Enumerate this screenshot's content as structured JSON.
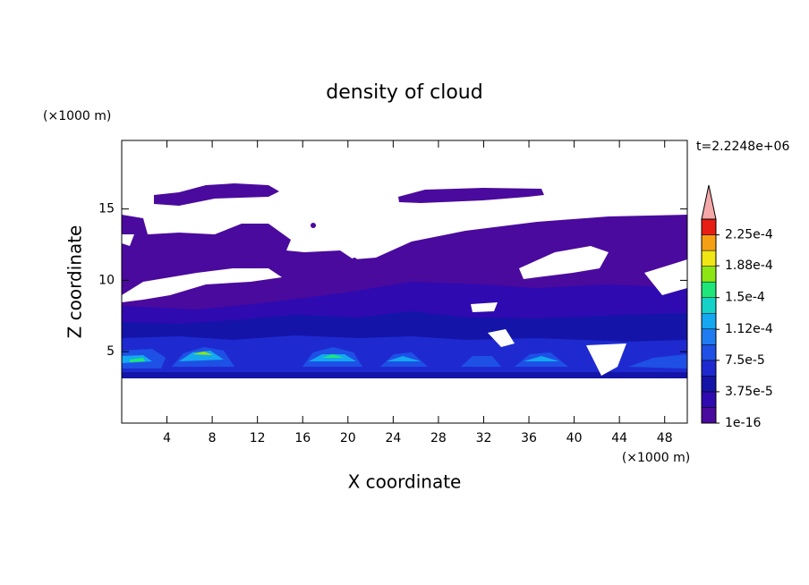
{
  "chart_data": {
    "type": "contour",
    "title": "density of cloud",
    "x_label": "X coordinate",
    "y_label": "Z coordinate",
    "x_unit": "(×1000 m)",
    "y_unit": "(×1000 m)",
    "time_label": "t=2.2248e+06",
    "xlim": [
      0,
      50
    ],
    "ylim": [
      0,
      19.8
    ],
    "xticks": [
      4,
      8,
      12,
      16,
      20,
      24,
      28,
      32,
      36,
      40,
      44,
      48
    ],
    "yticks": [
      5,
      10,
      15
    ],
    "colorbar": {
      "clim": [
        1e-16,
        0.00024375
      ],
      "colors": [
        "#4a0a9e",
        "#2e0ab0",
        "#1414a8",
        "#1e2ad0",
        "#1e50e6",
        "#1e7cf0",
        "#14a8f0",
        "#14d2c8",
        "#1ee678",
        "#8ce614",
        "#f0e614",
        "#f5a014",
        "#e61e14"
      ],
      "extend_color": "#f4a8a8",
      "ticks": [
        {
          "value": 1e-16,
          "label": "1e-16"
        },
        {
          "value": 3.75e-05,
          "label": "3.75e-5"
        },
        {
          "value": 7.5e-05,
          "label": "7.5e-5"
        },
        {
          "value": 0.000112,
          "label": "1.12e-4"
        },
        {
          "value": 0.00015,
          "label": "1.5e-4"
        },
        {
          "value": 0.000188,
          "label": "1.88e-4"
        },
        {
          "value": 0.000225,
          "label": "2.25e-4"
        }
      ]
    }
  }
}
